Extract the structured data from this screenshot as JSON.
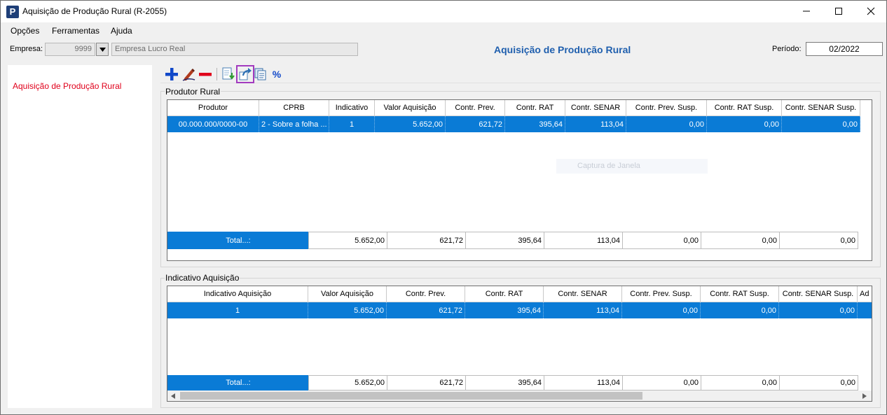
{
  "window": {
    "title": "Aquisição de Produção Rural (R-2055)",
    "app_icon_letter": "P"
  },
  "menu": [
    "Opções",
    "Ferramentas",
    "Ajuda"
  ],
  "empresa": {
    "label": "Empresa:",
    "code": "9999",
    "name": "Empresa Lucro Real"
  },
  "heading": "Aquisição de Produção Rural",
  "periodo": {
    "label": "Período:",
    "value": "02/2022"
  },
  "sidebar": {
    "items": [
      "Aquisição de Produção Rural"
    ]
  },
  "toolbar": {
    "icons": [
      "add-icon",
      "edit-icon",
      "remove-icon",
      "import-icon",
      "export-icon",
      "copy-icon",
      "percent-icon"
    ],
    "percent_label": "%",
    "highlight_color": "#a23bbf"
  },
  "produtor": {
    "title": "Produtor Rural",
    "headers": [
      "Produtor",
      "CPRB",
      "Indicativo",
      "Valor Aquisição",
      "Contr. Prev.",
      "Contr. RAT",
      "Contr. SENAR",
      "Contr. Prev. Susp.",
      "Contr. RAT Susp.",
      "Contr. SENAR Susp."
    ],
    "rows": [
      [
        "00.000.000/0000-00",
        "2 - Sobre a folha ...",
        "1",
        "5.652,00",
        "621,72",
        "395,64",
        "113,04",
        "0,00",
        "0,00",
        "0,00"
      ]
    ],
    "total_label": "Total...:",
    "totals": [
      "5.652,00",
      "621,72",
      "395,64",
      "113,04",
      "0,00",
      "0,00",
      "0,00"
    ]
  },
  "overlay_hint": "Captura de Janela",
  "indicativo": {
    "title": "Indicativo Aquisição",
    "headers": [
      "Indicativo Aquisição",
      "Valor Aquisição",
      "Contr. Prev.",
      "Contr. RAT",
      "Contr. SENAR",
      "Contr. Prev. Susp.",
      "Contr. RAT Susp.",
      "Contr. SENAR Susp.",
      "Ad"
    ],
    "rows": [
      [
        "1",
        "5.652,00",
        "621,72",
        "395,64",
        "113,04",
        "0,00",
        "0,00",
        "0,00",
        ""
      ]
    ],
    "total_label": "Total...:",
    "totals": [
      "5.652,00",
      "621,72",
      "395,64",
      "113,04",
      "0,00",
      "0,00",
      "0,00"
    ]
  },
  "colors": {
    "selection": "#0a7bd6",
    "heading": "#1f5fae",
    "sidebar_text": "#e0001b"
  }
}
